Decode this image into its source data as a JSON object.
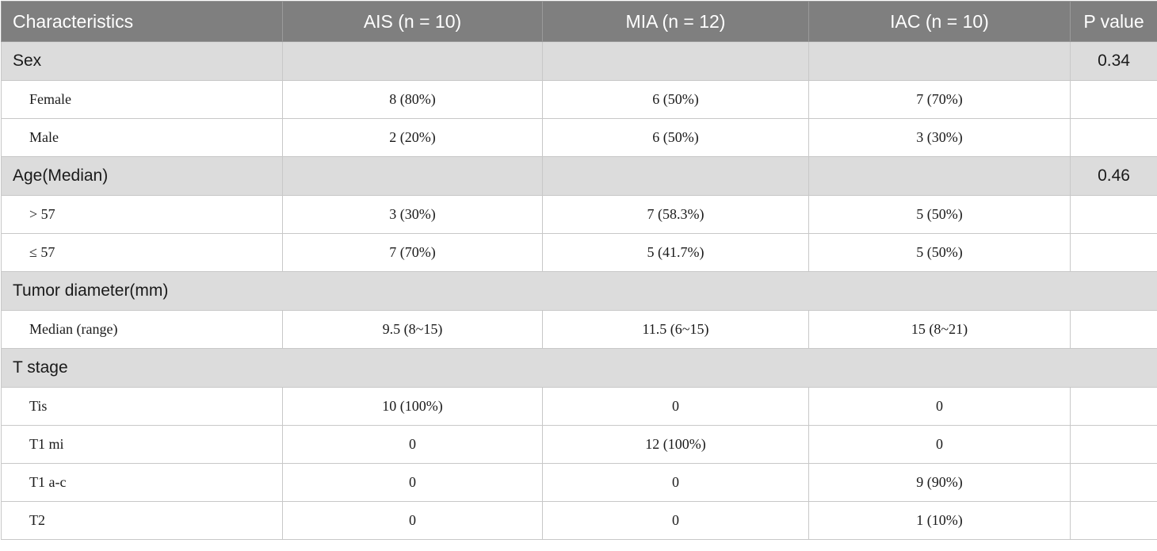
{
  "table": {
    "headers": [
      "Characteristics",
      "AIS (n = 10)",
      "MIA (n = 12)",
      "IAC (n = 10)",
      "P value"
    ],
    "groups": [
      {
        "label": "Sex",
        "p_value": "0.34",
        "rows": [
          {
            "label": "Female",
            "cells": [
              "8 (80%)",
              "6 (50%)",
              "7 (70%)",
              ""
            ]
          },
          {
            "label": "Male",
            "cells": [
              "2 (20%)",
              "6 (50%)",
              "3 (30%)",
              ""
            ]
          }
        ]
      },
      {
        "label": "Age(Median)",
        "p_value": "0.46",
        "rows": [
          {
            "label": "> 57",
            "cells": [
              "3 (30%)",
              "7 (58.3%)",
              "5 (50%)",
              ""
            ]
          },
          {
            "label": "≤ 57",
            "cells": [
              "7 (70%)",
              "5 (41.7%)",
              "5 (50%)",
              ""
            ]
          }
        ]
      },
      {
        "label": "Tumor diameter(mm)",
        "p_value": "",
        "rows": [
          {
            "label": "Median (range)",
            "cells": [
              "9.5 (8~15)",
              "11.5 (6~15)",
              "15 (8~21)",
              ""
            ]
          }
        ]
      },
      {
        "label": "T stage",
        "p_value": "",
        "rows": [
          {
            "label": "Tis",
            "cells": [
              "10 (100%)",
              "0",
              "0",
              ""
            ]
          },
          {
            "label": "T1 mi",
            "cells": [
              "0",
              "12 (100%)",
              "0",
              ""
            ]
          },
          {
            "label": "T1 a-c",
            "cells": [
              "0",
              "0",
              "9 (90%)",
              ""
            ]
          },
          {
            "label": "T2",
            "cells": [
              "0",
              "0",
              "1 (10%)",
              ""
            ]
          }
        ]
      }
    ]
  }
}
